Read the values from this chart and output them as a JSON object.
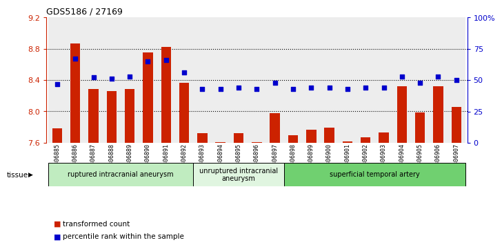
{
  "title": "GDS5186 / 27169",
  "samples": [
    "GSM1306885",
    "GSM1306886",
    "GSM1306887",
    "GSM1306888",
    "GSM1306889",
    "GSM1306890",
    "GSM1306891",
    "GSM1306892",
    "GSM1306893",
    "GSM1306894",
    "GSM1306895",
    "GSM1306896",
    "GSM1306897",
    "GSM1306898",
    "GSM1306899",
    "GSM1306900",
    "GSM1306901",
    "GSM1306902",
    "GSM1306903",
    "GSM1306904",
    "GSM1306905",
    "GSM1306906",
    "GSM1306907"
  ],
  "bar_values": [
    7.78,
    8.87,
    8.29,
    8.26,
    8.29,
    8.75,
    8.82,
    8.37,
    7.72,
    7.61,
    7.72,
    7.61,
    7.98,
    7.7,
    7.77,
    7.79,
    7.62,
    7.67,
    7.73,
    8.32,
    7.99,
    8.32,
    8.06
  ],
  "dot_values": [
    47,
    67,
    52,
    51,
    53,
    65,
    66,
    56,
    43,
    43,
    44,
    43,
    48,
    43,
    44,
    44,
    43,
    44,
    44,
    53,
    48,
    53,
    50
  ],
  "ylim_left": [
    7.6,
    9.2
  ],
  "ylim_right": [
    0,
    100
  ],
  "yticks_left": [
    7.6,
    8.0,
    8.4,
    8.8,
    9.2
  ],
  "yticks_right": [
    0,
    25,
    50,
    75,
    100
  ],
  "yticklabels_right": [
    "0",
    "25",
    "50",
    "75",
    "100%"
  ],
  "hlines": [
    8.0,
    8.4,
    8.8
  ],
  "groups": [
    {
      "label": "ruptured intracranial aneurysm",
      "start": 0,
      "end": 8,
      "color": "#c0ecc0"
    },
    {
      "label": "unruptured intracranial\naneurysm",
      "start": 8,
      "end": 13,
      "color": "#e0f5e0"
    },
    {
      "label": "superficial temporal artery",
      "start": 13,
      "end": 23,
      "color": "#70d070"
    }
  ],
  "bar_color": "#cc2200",
  "dot_color": "#0000cc",
  "bar_bottom": 7.6,
  "col_bg_odd": "#d8d8d8",
  "col_bg_even": "#e8e8e8",
  "legend_bar_label": "transformed count",
  "legend_dot_label": "percentile rank within the sample"
}
